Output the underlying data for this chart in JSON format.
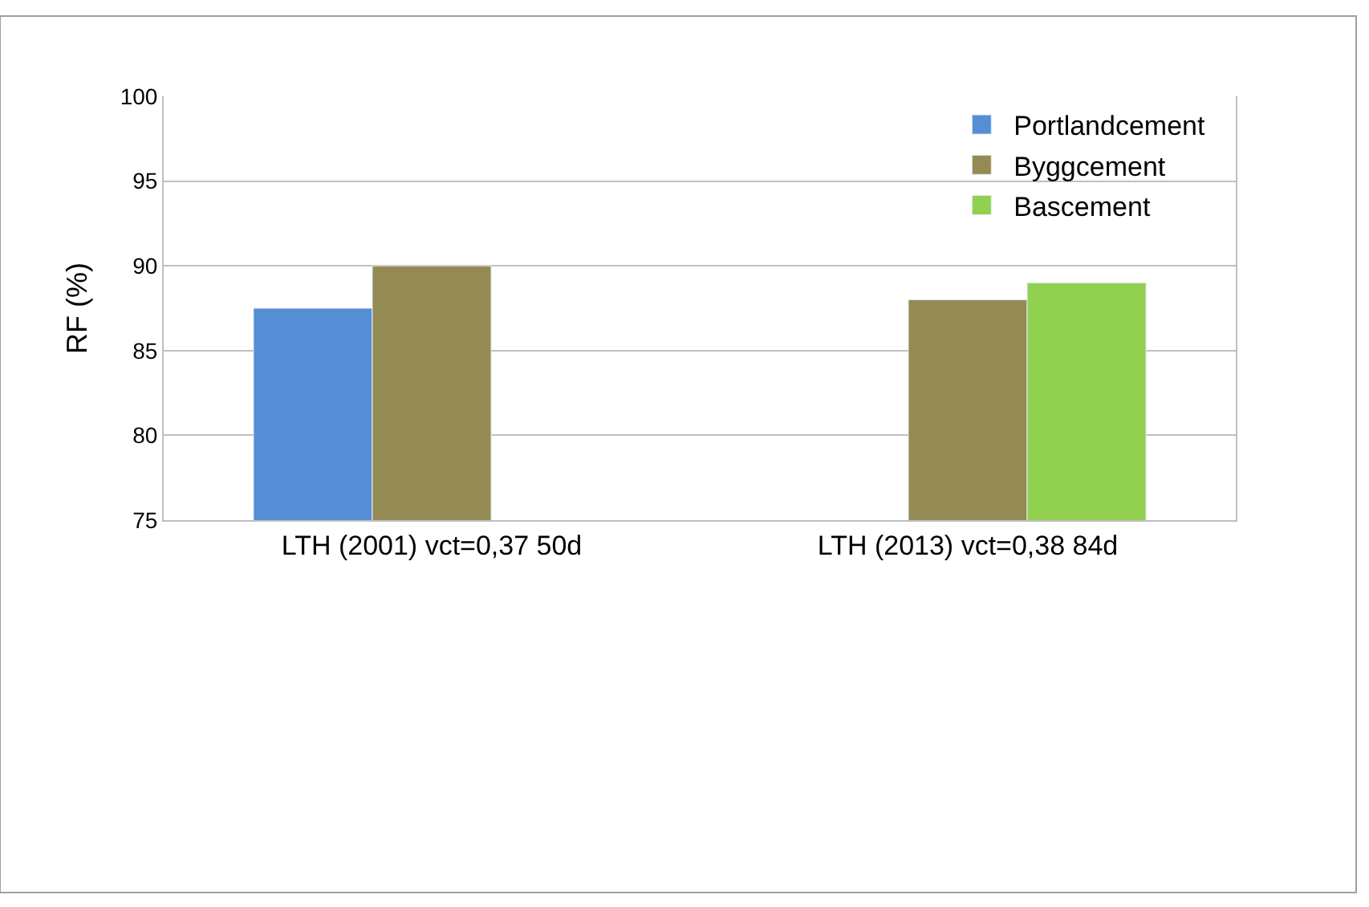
{
  "chart_data": {
    "type": "bar",
    "ylabel": "RF (%)",
    "categories": [
      "LTH (2001) vct=0,37 50d",
      "LTH (2013) vct=0,38 84d"
    ],
    "series": [
      {
        "name": "Portlandcement",
        "color": "#558ed5",
        "values": [
          87.5,
          null
        ]
      },
      {
        "name": "Byggcement",
        "color": "#948a54",
        "values": [
          90,
          88
        ]
      },
      {
        "name": "Bascement",
        "color": "#92d050",
        "values": [
          null,
          89
        ]
      }
    ],
    "ylim": [
      75,
      100
    ],
    "yticks": [
      75,
      80,
      85,
      90,
      95,
      100
    ],
    "grid": "y",
    "legend": "top right"
  }
}
